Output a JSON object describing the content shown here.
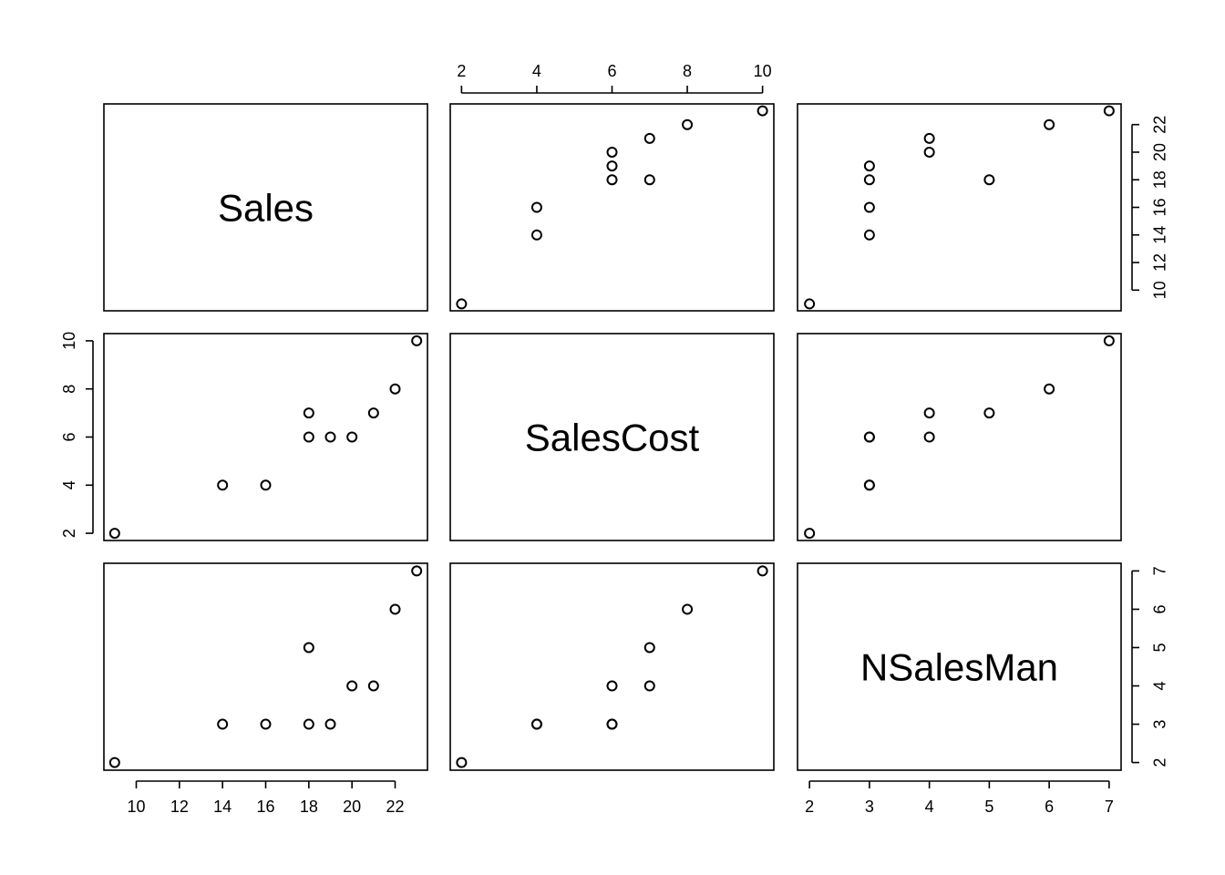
{
  "chart_data": {
    "type": "scatter",
    "title": "",
    "variables": [
      "Sales",
      "SalesCost",
      "NSalesMan"
    ],
    "observations": {
      "Sales": [
        9,
        14,
        16,
        18,
        18,
        19,
        20,
        21,
        22,
        23
      ],
      "SalesCost": [
        2,
        4,
        4,
        7,
        6,
        6,
        6,
        7,
        8,
        10
      ],
      "NSalesMan": [
        2,
        3,
        3,
        5,
        3,
        3,
        4,
        4,
        6,
        7
      ]
    },
    "axes": {
      "Sales": {
        "range": [
          8.5,
          23.5
        ],
        "ticks": [
          10,
          12,
          14,
          16,
          18,
          20,
          22
        ]
      },
      "SalesCost": {
        "range": [
          1.7,
          10.3
        ],
        "ticks": [
          2,
          4,
          6,
          8,
          10
        ]
      },
      "NSalesMan": {
        "range": [
          1.8,
          7.2
        ],
        "ticks": [
          2,
          3,
          4,
          5,
          6,
          7
        ]
      }
    },
    "layout": "3x3 scatterplot matrix (pairs plot)",
    "grid": false,
    "point_style": "open circle"
  }
}
